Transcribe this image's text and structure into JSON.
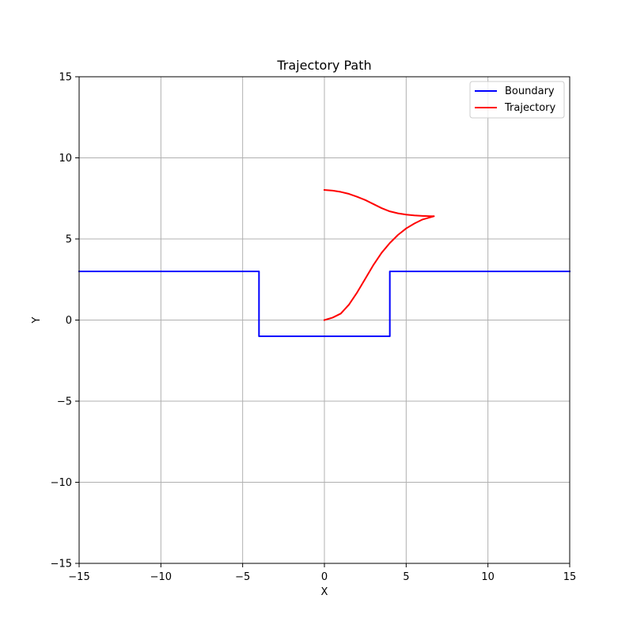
{
  "chart_data": {
    "type": "line",
    "title": "Trajectory Path",
    "xlabel": "X",
    "ylabel": "Y",
    "xlim": [
      -15,
      15
    ],
    "ylim": [
      -15,
      15
    ],
    "xticks": [
      -15,
      -10,
      -5,
      0,
      5,
      10,
      15
    ],
    "yticks": [
      -15,
      -10,
      -5,
      0,
      5,
      10,
      15
    ],
    "xtick_labels": [
      "−15",
      "−10",
      "−5",
      "0",
      "5",
      "10",
      "15"
    ],
    "ytick_labels": [
      "−15",
      "−10",
      "−5",
      "0",
      "5",
      "10",
      "15"
    ],
    "grid": true,
    "legend_position": "top-right",
    "series": [
      {
        "name": "Boundary",
        "color": "#0000ff",
        "points": [
          [
            -15,
            3
          ],
          [
            -4,
            3
          ],
          [
            -4,
            -1
          ],
          [
            4,
            -1
          ],
          [
            4,
            3
          ],
          [
            15,
            3
          ]
        ]
      },
      {
        "name": "Trajectory",
        "color": "#ff0000",
        "points": [
          [
            0,
            0
          ],
          [
            0.5,
            0.15
          ],
          [
            1,
            0.4
          ],
          [
            1.5,
            0.95
          ],
          [
            2,
            1.7
          ],
          [
            2.5,
            2.55
          ],
          [
            3,
            3.4
          ],
          [
            3.5,
            4.15
          ],
          [
            4,
            4.75
          ],
          [
            4.5,
            5.25
          ],
          [
            5,
            5.65
          ],
          [
            5.5,
            5.95
          ],
          [
            6,
            6.2
          ],
          [
            6.7,
            6.4
          ],
          [
            6.5,
            6.4
          ],
          [
            6,
            6.42
          ],
          [
            5.5,
            6.45
          ],
          [
            5,
            6.5
          ],
          [
            4.5,
            6.58
          ],
          [
            4,
            6.7
          ],
          [
            3.5,
            6.9
          ],
          [
            3,
            7.15
          ],
          [
            2.5,
            7.4
          ],
          [
            2,
            7.6
          ],
          [
            1.5,
            7.78
          ],
          [
            1,
            7.9
          ],
          [
            0.5,
            7.98
          ],
          [
            0,
            8.02
          ]
        ]
      }
    ]
  }
}
